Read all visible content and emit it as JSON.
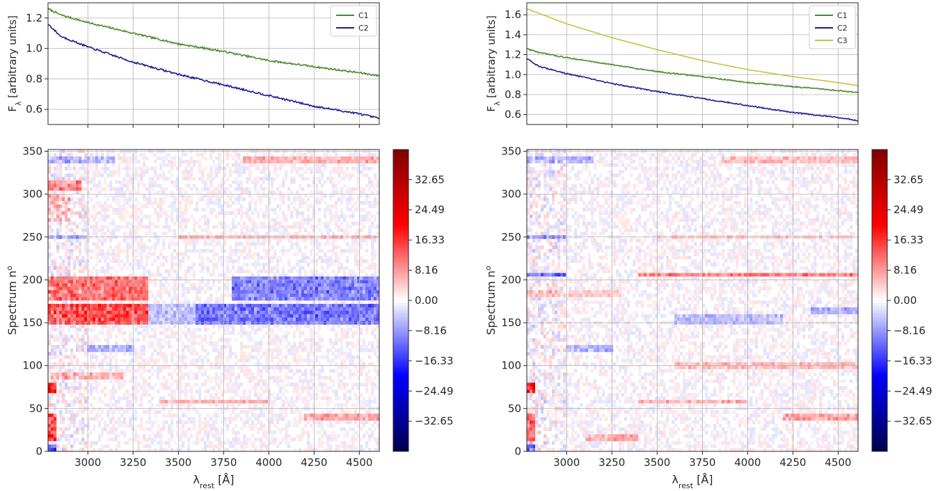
{
  "chart_data": [
    {
      "type": "line",
      "panel": "top-left",
      "title": "",
      "xlabel": "",
      "ylabel": "F",
      "ylabel_sub": "λ",
      "ylabel_rest": " [arbitrary units]",
      "xlim": [
        2780,
        4610
      ],
      "ylim": [
        0.5,
        1.3
      ],
      "xticks": [
        3000,
        3250,
        3500,
        3750,
        4000,
        4250,
        4500
      ],
      "yticks": [
        0.6,
        0.8,
        1.0,
        1.2
      ],
      "ytick_labels": [
        "0.6",
        "0.8",
        "1.0",
        "1.2"
      ],
      "grid": true,
      "legend": "top-right",
      "series": [
        {
          "name": "C1",
          "color": "#4a8a2c",
          "x": [
            2780,
            2850,
            3000,
            3250,
            3500,
            3750,
            4000,
            4250,
            4500,
            4610
          ],
          "y": [
            1.26,
            1.22,
            1.17,
            1.1,
            1.03,
            0.98,
            0.92,
            0.88,
            0.84,
            0.82
          ]
        },
        {
          "name": "C2",
          "color": "#1c1c8f",
          "x": [
            2780,
            2850,
            3000,
            3250,
            3500,
            3750,
            4000,
            4250,
            4500,
            4610
          ],
          "y": [
            1.16,
            1.08,
            1.01,
            0.91,
            0.83,
            0.76,
            0.69,
            0.62,
            0.57,
            0.54
          ]
        }
      ]
    },
    {
      "type": "line",
      "panel": "top-right",
      "title": "",
      "xlabel": "",
      "ylabel": "F",
      "ylabel_sub": "λ",
      "ylabel_rest": " [arbitrary units]",
      "xlim": [
        2780,
        4610
      ],
      "ylim": [
        0.5,
        1.72
      ],
      "xticks": [
        3000,
        3250,
        3500,
        3750,
        4000,
        4250,
        4500
      ],
      "yticks": [
        0.6,
        0.8,
        1.0,
        1.2,
        1.4,
        1.6
      ],
      "ytick_labels": [
        "0.6",
        "0.8",
        "1.0",
        "1.2",
        "1.4",
        "1.6"
      ],
      "grid": true,
      "legend": "top-right",
      "series": [
        {
          "name": "C1",
          "color": "#4a8a2c",
          "x": [
            2780,
            2850,
            3000,
            3250,
            3500,
            3750,
            4000,
            4250,
            4500,
            4610
          ],
          "y": [
            1.26,
            1.22,
            1.17,
            1.1,
            1.03,
            0.98,
            0.92,
            0.88,
            0.84,
            0.82
          ]
        },
        {
          "name": "C2",
          "color": "#1c1c8f",
          "x": [
            2780,
            2850,
            3000,
            3250,
            3500,
            3750,
            4000,
            4250,
            4500,
            4610
          ],
          "y": [
            1.16,
            1.08,
            1.01,
            0.91,
            0.83,
            0.76,
            0.69,
            0.62,
            0.57,
            0.54
          ]
        },
        {
          "name": "C3",
          "color": "#c8c040",
          "x": [
            2780,
            3000,
            3250,
            3500,
            3750,
            4000,
            4250,
            4500,
            4610
          ],
          "y": [
            1.66,
            1.51,
            1.37,
            1.25,
            1.14,
            1.05,
            0.98,
            0.92,
            0.89
          ]
        }
      ]
    },
    {
      "type": "heatmap",
      "panel": "bottom-left",
      "title": "",
      "xlabel": "λ",
      "xlabel_sub": "rest",
      "xlabel_rest": " [Å]",
      "ylabel": "Spectrum n",
      "ylabel_sup": "o",
      "xlim": [
        2780,
        4610
      ],
      "ylim": [
        0,
        352
      ],
      "xticks": [
        3000,
        3250,
        3500,
        3750,
        4000,
        4250,
        4500
      ],
      "yticks": [
        0,
        50,
        100,
        150,
        200,
        250,
        300,
        350
      ],
      "grid": true,
      "colormap": "seismic",
      "color_low": "#00004c",
      "color_mid": "#ffffff",
      "color_high": "#7f0000",
      "clim": [
        -40.8,
        40.8
      ],
      "colorbar_ticks": [
        32.65,
        24.49,
        16.33,
        8.16,
        0.0,
        -8.16,
        -16.33,
        -24.49,
        -32.65
      ],
      "colorbar_labels": [
        "32.65",
        "24.49",
        "16.33",
        "8.16",
        "0.00",
        "−8.16",
        "−16.33",
        "−24.49",
        "−32.65"
      ],
      "bands": [
        {
          "y0": 150,
          "y1": 170,
          "x0": 2780,
          "x1": 3330,
          "value": 14
        },
        {
          "y0": 175,
          "y1": 205,
          "x0": 2780,
          "x1": 3330,
          "value": 11
        },
        {
          "y0": 150,
          "y1": 170,
          "x0": 3330,
          "x1": 3600,
          "value": -5
        },
        {
          "y0": 150,
          "y1": 170,
          "x0": 3600,
          "x1": 4610,
          "value": -11
        },
        {
          "y0": 175,
          "y1": 205,
          "x0": 3800,
          "x1": 4610,
          "value": -10
        },
        {
          "y0": 305,
          "y1": 315,
          "x0": 2780,
          "x1": 2960,
          "value": 9
        },
        {
          "y0": 336,
          "y1": 342,
          "x0": 2780,
          "x1": 3150,
          "value": -6
        },
        {
          "y0": 335,
          "y1": 342,
          "x0": 3850,
          "x1": 4610,
          "value": 6
        },
        {
          "y0": 248,
          "y1": 251,
          "x0": 2780,
          "x1": 3000,
          "value": -8
        },
        {
          "y0": 248,
          "y1": 251,
          "x0": 3500,
          "x1": 4610,
          "value": 5
        },
        {
          "y0": 70,
          "y1": 80,
          "x0": 2780,
          "x1": 2830,
          "value": 20
        },
        {
          "y0": 10,
          "y1": 45,
          "x0": 2780,
          "x1": 2830,
          "value": 14
        },
        {
          "y0": 0,
          "y1": 10,
          "x0": 2780,
          "x1": 2820,
          "value": -14
        },
        {
          "y0": 55,
          "y1": 58,
          "x0": 3400,
          "x1": 4000,
          "value": 6
        },
        {
          "y0": 38,
          "y1": 42,
          "x0": 4200,
          "x1": 4610,
          "value": 7
        },
        {
          "y0": 85,
          "y1": 90,
          "x0": 2800,
          "x1": 3200,
          "value": 6
        },
        {
          "y0": 115,
          "y1": 122,
          "x0": 3000,
          "x1": 3250,
          "value": -6
        },
        {
          "y0": 270,
          "y1": 300,
          "x0": 2780,
          "x1": 2900,
          "value": 5
        }
      ]
    },
    {
      "type": "heatmap",
      "panel": "bottom-right",
      "title": "",
      "xlabel": "λ",
      "xlabel_sub": "rest",
      "xlabel_rest": " [Å]",
      "ylabel": "Spectrum n",
      "ylabel_sup": "o",
      "xlim": [
        2780,
        4610
      ],
      "ylim": [
        0,
        352
      ],
      "xticks": [
        3000,
        3250,
        3500,
        3750,
        4000,
        4250,
        4500
      ],
      "yticks": [
        0,
        50,
        100,
        150,
        200,
        250,
        300,
        350
      ],
      "grid": true,
      "colormap": "seismic",
      "color_low": "#00004c",
      "color_mid": "#ffffff",
      "color_high": "#7f0000",
      "clim": [
        -40.8,
        40.8
      ],
      "colorbar_ticks": [
        32.65,
        24.49,
        16.33,
        8.16,
        0.0,
        -8.16,
        -16.33,
        -24.49,
        -32.65
      ],
      "colorbar_labels": [
        "32.65",
        "24.49",
        "16.33",
        "8.16",
        "0.00",
        "−8.16",
        "−16.33",
        "−24.49",
        "−32.65"
      ],
      "bands": [
        {
          "y0": 205,
          "y1": 208,
          "x0": 3400,
          "x1": 4610,
          "value": 10
        },
        {
          "y0": 205,
          "y1": 209,
          "x0": 2780,
          "x1": 3000,
          "value": -12
        },
        {
          "y0": 150,
          "y1": 160,
          "x0": 3600,
          "x1": 4200,
          "value": -5
        },
        {
          "y0": 160,
          "y1": 168,
          "x0": 4350,
          "x1": 4610,
          "value": -6
        },
        {
          "y0": 336,
          "y1": 342,
          "x0": 2780,
          "x1": 3150,
          "value": -6
        },
        {
          "y0": 335,
          "y1": 342,
          "x0": 3850,
          "x1": 4610,
          "value": 5
        },
        {
          "y0": 248,
          "y1": 251,
          "x0": 2780,
          "x1": 3000,
          "value": -8
        },
        {
          "y0": 248,
          "y1": 251,
          "x0": 3500,
          "x1": 4610,
          "value": 4
        },
        {
          "y0": 70,
          "y1": 80,
          "x0": 2780,
          "x1": 2830,
          "value": 18
        },
        {
          "y0": 10,
          "y1": 45,
          "x0": 2780,
          "x1": 2830,
          "value": 13
        },
        {
          "y0": 0,
          "y1": 10,
          "x0": 2780,
          "x1": 2820,
          "value": -12
        },
        {
          "y0": 55,
          "y1": 58,
          "x0": 3400,
          "x1": 4000,
          "value": 6
        },
        {
          "y0": 95,
          "y1": 102,
          "x0": 3600,
          "x1": 4610,
          "value": 5
        },
        {
          "y0": 38,
          "y1": 42,
          "x0": 4200,
          "x1": 4610,
          "value": 7
        },
        {
          "y0": 12,
          "y1": 18,
          "x0": 3100,
          "x1": 3400,
          "value": 6
        },
        {
          "y0": 180,
          "y1": 188,
          "x0": 2780,
          "x1": 3300,
          "value": 4
        },
        {
          "y0": 115,
          "y1": 122,
          "x0": 3000,
          "x1": 3250,
          "value": -6
        }
      ]
    }
  ]
}
